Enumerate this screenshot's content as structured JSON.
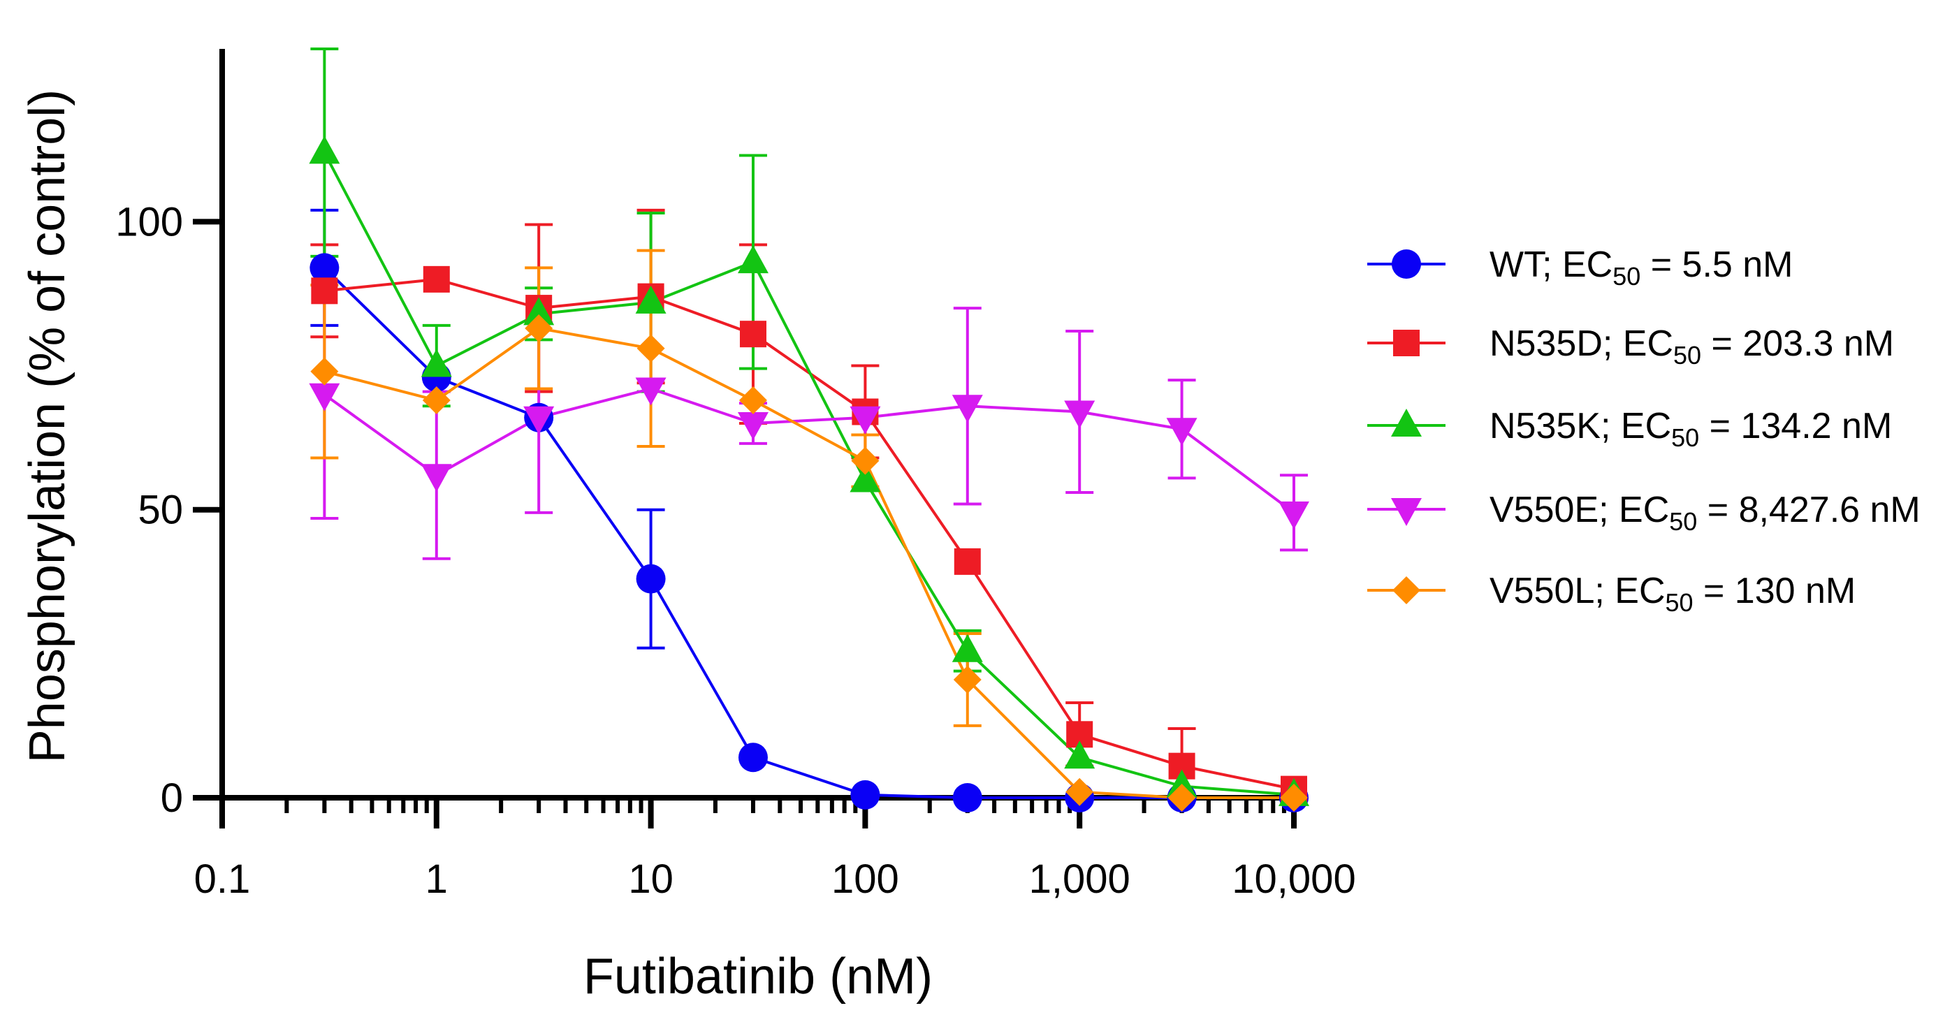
{
  "chart_data": {
    "type": "line",
    "xscale": "log",
    "xlabel": "Futibatinib (nM)",
    "ylabel": "Phosphorylation (% of control)",
    "xlim": [
      0.1,
      10000
    ],
    "ylim": [
      0,
      130
    ],
    "x_ticks": [
      {
        "value": 0.1,
        "label": "0.1"
      },
      {
        "value": 1,
        "label": "1"
      },
      {
        "value": 10,
        "label": "10"
      },
      {
        "value": 100,
        "label": "100"
      },
      {
        "value": 1000,
        "label": "1,000"
      },
      {
        "value": 10000,
        "label": "10,000"
      }
    ],
    "y_ticks": [
      {
        "value": 0,
        "label": "0"
      },
      {
        "value": 50,
        "label": "50"
      },
      {
        "value": 100,
        "label": "100"
      }
    ],
    "legend_position": "right",
    "x": [
      0.3,
      1,
      3,
      10,
      30,
      100,
      300,
      1000,
      3000,
      10000
    ],
    "series": [
      {
        "name": "WT",
        "legend_prefix": "WT;  EC",
        "legend_sub": "50",
        "legend_suffix": " = 5.5 nM",
        "color": "#0A00F5",
        "marker": "circle",
        "values": [
          92,
          73,
          66,
          38,
          7,
          0.5,
          0,
          0,
          0,
          0
        ],
        "errors": [
          10,
          0,
          0,
          12,
          0,
          0,
          0,
          0,
          0,
          0
        ]
      },
      {
        "name": "N535D",
        "legend_prefix": "N535D; EC",
        "legend_sub": "50",
        "legend_suffix": " = 203.3 nM",
        "color": "#EE1C25",
        "marker": "square",
        "values": [
          88,
          90,
          85,
          87,
          80.5,
          67,
          41,
          11,
          5.5,
          1.5
        ],
        "errors": [
          8,
          0,
          14.5,
          15,
          15.5,
          8,
          0,
          5.5,
          6.5,
          0
        ]
      },
      {
        "name": "N535K",
        "legend_prefix": "N535K; EC",
        "legend_sub": "50",
        "legend_suffix": " = 134.2 nM",
        "color": "#13C413",
        "marker": "triangle-up",
        "values": [
          112,
          75,
          84,
          86,
          93,
          55,
          25.5,
          7,
          2,
          0.5
        ],
        "errors": [
          18,
          7,
          4.5,
          15.5,
          18.5,
          0,
          3.5,
          0,
          0,
          0
        ]
      },
      {
        "name": "V550E",
        "legend_prefix": "V550E; EC",
        "legend_sub": "50",
        "legend_suffix": " = 8,427.6 nM",
        "color": "#D61AF0",
        "marker": "triangle-down",
        "values": [
          70,
          56,
          66,
          71,
          65,
          66,
          68,
          67,
          64,
          49.5
        ],
        "errors": [
          21.5,
          14.5,
          16.5,
          0,
          3.5,
          0,
          17,
          14,
          8.5,
          6.5
        ]
      },
      {
        "name": "V550L",
        "legend_prefix": "V550L; EC",
        "legend_sub": "50",
        "legend_suffix": " = 130 nM",
        "color": "#FF8C00",
        "marker": "diamond",
        "values": [
          74,
          69,
          81.5,
          78,
          69,
          58.5,
          20.5,
          1,
          0,
          0
        ],
        "errors": [
          15,
          0,
          10.5,
          17,
          0,
          4.5,
          8,
          0,
          0,
          0
        ]
      }
    ]
  }
}
